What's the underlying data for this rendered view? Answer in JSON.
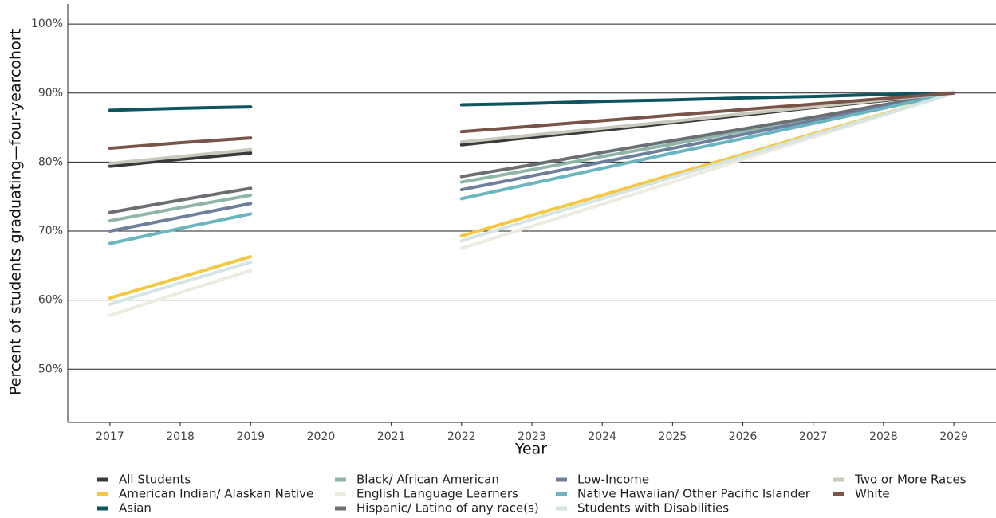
{
  "chart_data": {
    "type": "line",
    "xlabel": "Year",
    "ylabel": "Percent of students graduating—four-yearcohort",
    "x": [
      2017,
      2018,
      2019,
      2020,
      2021,
      2022,
      2023,
      2024,
      2025,
      2026,
      2027,
      2028,
      2029
    ],
    "xlim": [
      2016.4,
      2029.6
    ],
    "xticks": [
      2017,
      2018,
      2019,
      2020,
      2021,
      2022,
      2023,
      2024,
      2025,
      2026,
      2027,
      2028,
      2029
    ],
    "ylim": [
      42.3,
      102.9
    ],
    "yticks": [
      {
        "value": 50,
        "label": "50%"
      },
      {
        "value": 60,
        "label": "60%"
      },
      {
        "value": 70,
        "label": "70%"
      },
      {
        "value": 80,
        "label": "80%"
      },
      {
        "value": 90,
        "label": "90%"
      },
      {
        "value": 100,
        "label": "100%"
      }
    ],
    "grid": true,
    "legend": "bottom",
    "series": [
      {
        "name": "All Students",
        "color": "#3a3a3a",
        "values": [
          79.4,
          80.4,
          81.3,
          null,
          null,
          82.5,
          83.6,
          84.6,
          85.7,
          86.8,
          87.9,
          88.9,
          90
        ]
      },
      {
        "name": "American Indian/ Alaskan Native",
        "color": "#f5c842",
        "values": [
          60.3,
          63.3,
          66.3,
          null,
          null,
          69.3,
          72.3,
          75.2,
          78.2,
          81.1,
          84.1,
          87.0,
          90
        ]
      },
      {
        "name": "Asian",
        "color": "#0f5560",
        "values": [
          87.5,
          87.8,
          88.0,
          null,
          null,
          88.3,
          88.5,
          88.8,
          89.0,
          89.3,
          89.5,
          89.8,
          90
        ]
      },
      {
        "name": "Black/ African American",
        "color": "#8fb5a8",
        "values": [
          71.5,
          73.4,
          75.2,
          null,
          null,
          77.1,
          78.9,
          80.8,
          82.6,
          84.5,
          86.3,
          88.2,
          90
        ]
      },
      {
        "name": "English Language Learners",
        "color": "#ecebe0",
        "values": [
          57.8,
          61.1,
          64.3,
          null,
          null,
          67.5,
          70.7,
          73.9,
          77.1,
          80.4,
          83.6,
          86.8,
          90
        ]
      },
      {
        "name": "Hispanic/ Latino of any race(s)",
        "color": "#6b6f73",
        "values": [
          72.7,
          74.5,
          76.2,
          null,
          null,
          77.9,
          79.6,
          81.4,
          83.1,
          84.8,
          86.5,
          88.3,
          90
        ]
      },
      {
        "name": "Low-Income",
        "color": "#6e7f9c",
        "values": [
          70.0,
          72.0,
          74.0,
          null,
          null,
          76.0,
          78.0,
          80.0,
          82.0,
          84.0,
          86.0,
          88.0,
          90
        ]
      },
      {
        "name": "Native Hawaiian/ Other Pacific Islander",
        "color": "#6bb5c0",
        "values": [
          68.2,
          70.4,
          72.5,
          null,
          null,
          74.7,
          76.9,
          79.1,
          81.3,
          83.4,
          85.6,
          87.8,
          90
        ]
      },
      {
        "name": "Students with Disabilities",
        "color": "#d5e5e5",
        "values": [
          59.4,
          62.5,
          65.5,
          null,
          null,
          68.6,
          71.7,
          74.7,
          77.8,
          80.8,
          83.9,
          86.9,
          90
        ]
      },
      {
        "name": "Two or More Races",
        "color": "#c8c8bb",
        "values": [
          79.8,
          80.8,
          81.8,
          null,
          null,
          82.9,
          83.9,
          84.9,
          85.9,
          87.0,
          88.0,
          89.0,
          90
        ]
      },
      {
        "name": "White",
        "color": "#7a5448",
        "values": [
          82.0,
          82.8,
          83.5,
          null,
          null,
          84.4,
          85.2,
          86.0,
          86.8,
          87.6,
          88.4,
          89.2,
          90
        ]
      }
    ]
  }
}
